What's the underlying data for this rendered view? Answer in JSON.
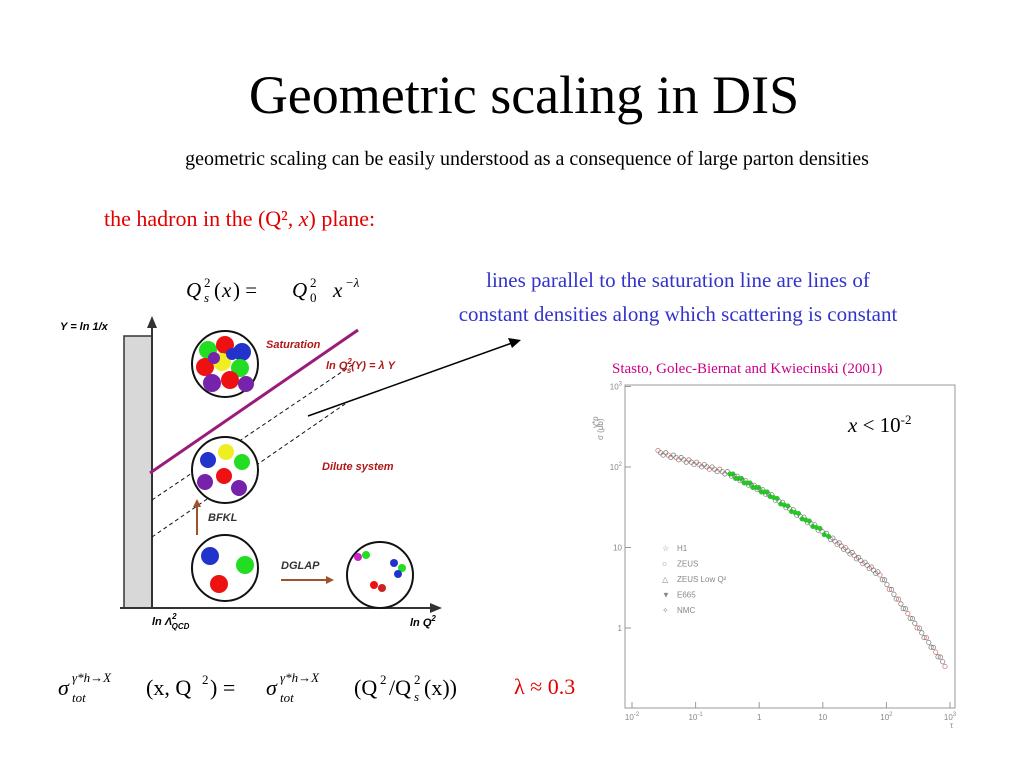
{
  "title": "Geometric scaling in DIS",
  "subtitle": "geometric scaling can be easily understood as a consequence of large parton densities",
  "hadron_line": [
    "the hadron in the (Q², ",
    "x",
    ") plane:"
  ],
  "saturation_formula": [
    "Q",
    "2",
    "s",
    "(",
    "x",
    ") = ",
    "Q",
    "2",
    "0",
    "x",
    "−λ"
  ],
  "note": [
    "lines parallel to the saturation line are lines of",
    "constant densities along which scattering is constant"
  ],
  "diagram": {
    "y_axis": "Y = ln 1/x",
    "saturation": "Saturation",
    "saturation_line": [
      "ln Q",
      "2",
      "s",
      "(Y) = λ Y"
    ],
    "dilute": "Dilute system",
    "bfkl": "BFKL",
    "dglap": "DGLAP",
    "x_origin": [
      "ln Λ",
      "2",
      "QCD"
    ],
    "x_axis": [
      "ln Q",
      "2"
    ]
  },
  "citation": "Stasto, Golec-Biernat and Kwiecinski (2001)",
  "plot": {
    "cut": [
      "x",
      " < 10",
      "-2"
    ],
    "y_label": "σ  (μb)",
    "y_label_sup": "γ*p",
    "y_label_sub": "tot",
    "x_label": "τ",
    "yticks": [
      {
        "base": "1"
      },
      {
        "base": "10"
      },
      {
        "base": "10",
        "sup": "2"
      },
      {
        "base": "10",
        "sup": "3"
      }
    ],
    "xticks": [
      {
        "base": "10",
        "sup": "-2"
      },
      {
        "base": "10",
        "sup": "-1"
      },
      {
        "base": "1"
      },
      {
        "base": "10"
      },
      {
        "base": "10",
        "sup": "2"
      },
      {
        "base": "10",
        "sup": "3"
      }
    ],
    "legend": [
      "H1",
      "ZEUS",
      "ZEUS Low Q²",
      "E665",
      "NMC"
    ]
  },
  "scaling_formula": [
    "σ",
    "γ*h→X",
    "tot",
    "(x, Q",
    "2",
    ") = ",
    "σ",
    "γ*h→X",
    "tot",
    "(Q",
    "2",
    "/Q",
    "2",
    "s",
    "(x))"
  ],
  "lambda": "λ ≈ 0.3"
}
